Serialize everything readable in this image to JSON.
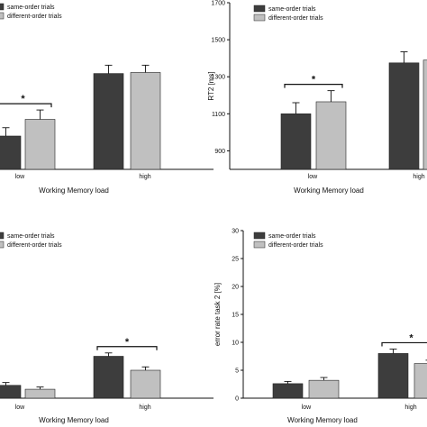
{
  "colors": {
    "same": "#3d3d3d",
    "different": "#c0c0c0",
    "axis": "#111111"
  },
  "chart_data": [
    {
      "type": "bar",
      "panel": "top-left",
      "categories": [
        "low",
        "high"
      ],
      "xlabel": "Working Memory load",
      "ylabel": "",
      "legend": {
        "labels": [
          "same-order trials",
          "different-order trials"
        ],
        "placement": "top-left"
      },
      "series": [
        {
          "name": "same-order trials",
          "values": [
            1060,
            1360
          ],
          "errors": [
            40,
            40
          ]
        },
        {
          "name": "different-order trials",
          "values": [
            1140,
            1365
          ],
          "errors": [
            45,
            35
          ]
        }
      ],
      "ylim": [
        900,
        1700
      ],
      "significance": [
        {
          "category": "low",
          "label": "*"
        }
      ]
    },
    {
      "type": "bar",
      "panel": "top-right",
      "categories": [
        "low",
        "high"
      ],
      "xlabel": "Working Memory load",
      "ylabel": "RT2 [ms]",
      "yticks": [
        "900",
        "1100",
        "1300",
        "1500",
        "1700"
      ],
      "legend": {
        "labels": [
          "same-order trials",
          "different-order trials"
        ],
        "placement": "top-left"
      },
      "series": [
        {
          "name": "same-order trials",
          "values": [
            1100,
            1375
          ],
          "errors": [
            60,
            60
          ]
        },
        {
          "name": "different-order trials",
          "values": [
            1165,
            1390
          ],
          "errors": [
            60,
            50
          ]
        }
      ],
      "ylim": [
        800,
        1700
      ],
      "significance": [
        {
          "category": "low",
          "label": "*"
        }
      ]
    },
    {
      "type": "bar",
      "panel": "bottom-left",
      "categories": [
        "low",
        "high"
      ],
      "xlabel": "Working Memory load",
      "ylabel": "",
      "legend": {
        "labels": [
          "same-order trials",
          "different-order trials"
        ],
        "placement": "top-left"
      },
      "series": [
        {
          "name": "same-order trials",
          "values": [
            2.3,
            7.5
          ],
          "errors": [
            0.5,
            0.6
          ]
        },
        {
          "name": "different-order trials",
          "values": [
            1.6,
            5.0
          ],
          "errors": [
            0.4,
            0.6
          ]
        }
      ],
      "ylim": [
        0,
        30
      ],
      "significance": [
        {
          "category": "high",
          "label": "*"
        }
      ]
    },
    {
      "type": "bar",
      "panel": "bottom-right",
      "categories": [
        "low",
        "high"
      ],
      "xlabel": "Working Memory load",
      "ylabel": "error rate task 2 [%]",
      "yticks": [
        "0",
        "5",
        "10",
        "15",
        "20",
        "25",
        "30"
      ],
      "legend": {
        "labels": [
          "same-order trials",
          "different-order trials"
        ],
        "placement": "top-left"
      },
      "series": [
        {
          "name": "same-order trials",
          "values": [
            2.6,
            8.0
          ],
          "errors": [
            0.4,
            0.8
          ]
        },
        {
          "name": "different-order trials",
          "values": [
            3.2,
            6.2
          ],
          "errors": [
            0.5,
            0.6
          ]
        }
      ],
      "ylim": [
        0,
        30
      ],
      "significance": [
        {
          "category": "high",
          "label": "*"
        }
      ]
    }
  ]
}
